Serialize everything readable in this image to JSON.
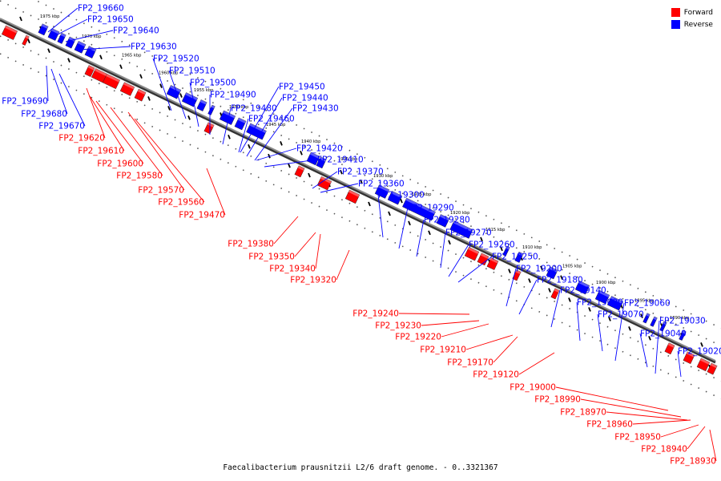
{
  "caption": "Faecalibacterium prausnitzii L2/6 draft genome. - 0..3321367",
  "legend": [
    {
      "label": "Forward",
      "color": "#ff0000"
    },
    {
      "label": "Reverse",
      "color": "#0000ff"
    }
  ],
  "colors": {
    "forward": "#ff0000",
    "reverse": "#0000ff",
    "axis": "#777777"
  },
  "kbp_marks": [
    "1975 kbp",
    "1970 kbp",
    "1965 kbp",
    "1960 kbp",
    "1955 kbp",
    "1950 kbp",
    "1945 kbp",
    "1940 kbp",
    "1935 kbp",
    "1930 kbp",
    "1925 kbp",
    "1920 kbp",
    "1915 kbp",
    "1910 kbp",
    "1905 kbp",
    "1900 kbp",
    "1895 kbp",
    "1890 kbp"
  ],
  "reverse_genes": [
    "FP2_19660",
    "FP2_19650",
    "FP2_19640",
    "FP2_19630",
    "FP2_19520",
    "FP2_19510",
    "FP2_19500",
    "FP2_19490",
    "FP2_19480",
    "FP2_19460",
    "FP2_19450",
    "FP2_19440",
    "FP2_19430",
    "FP2_19420",
    "FP2_19410",
    "FP2_19370",
    "FP2_19360",
    "FP2_19300",
    "FP2_19290",
    "FP2_19280",
    "FP2_19270",
    "FP2_19260",
    "FP2_19250",
    "FP2_19200",
    "FP2_19180",
    "FP2_19140",
    "FP2_19090",
    "FP2_19070",
    "FP2_19060",
    "FP2_19040",
    "FP2_19030",
    "FP2_19020"
  ],
  "reverse_left_genes": [
    "FP2_19690",
    "FP2_19680",
    "FP2_19670"
  ],
  "forward_genes": [
    "FP2_19620",
    "FP2_19610",
    "FP2_19600",
    "FP2_19580",
    "FP2_19570",
    "FP2_19560",
    "FP2_19470",
    "FP2_19380",
    "FP2_19350",
    "FP2_19340",
    "FP2_19320",
    "FP2_19240",
    "FP2_19230",
    "FP2_19220",
    "FP2_19210",
    "FP2_19170",
    "FP2_19120",
    "FP2_19000",
    "FP2_18990",
    "FP2_18970",
    "FP2_18960",
    "FP2_18950",
    "FP2_18940",
    "FP2_18930"
  ]
}
